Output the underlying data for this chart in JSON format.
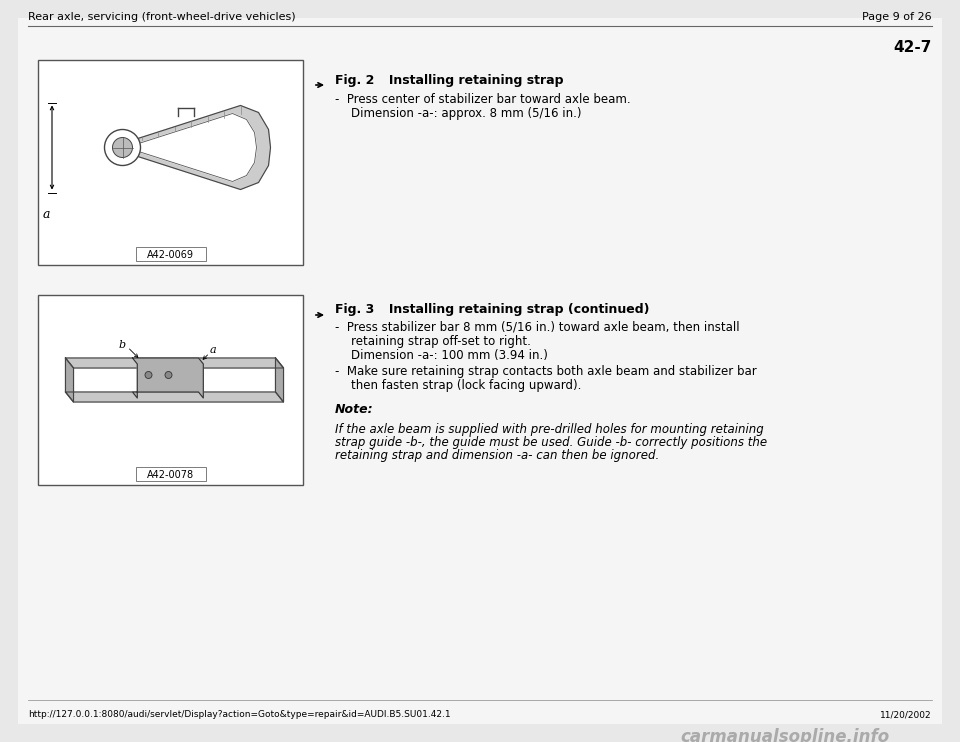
{
  "page_bg": "#e8e8e8",
  "content_bg": "#f5f5f5",
  "header_left": "Rear axle, servicing (front-wheel-drive vehicles)",
  "header_right": "Page 9 of 26",
  "page_number": "42-7",
  "fig2_title_bold": "Fig. 2",
  "fig2_title_rest": "     Installing retaining strap",
  "fig2_bullet1": "-  Press center of stabilizer bar toward axle beam.",
  "fig2_dim1": "     Dimension -a-: approx. 8 mm (5/16 in.)",
  "fig3_title_bold": "Fig. 3",
  "fig3_title_rest": "     Installing retaining strap (continued)",
  "fig3_bullet1": "-  Press stabilizer bar 8 mm (5/16 in.) toward axle beam, then install",
  "fig3_bullet1b": "     retaining strap off-set to right.",
  "fig3_dim1": "     Dimension -a-: 100 mm (3.94 in.)",
  "fig3_bullet2": "-  Make sure retaining strap contacts both axle beam and stabilizer bar",
  "fig3_bullet2b": "     then fasten strap (lock facing upward).",
  "note_label": "Note:",
  "note_text1": "If the axle beam is supplied with pre-drilled holes for mounting retaining",
  "note_text2": "strap guide -b-, the guide must be used. Guide -b- correctly positions the",
  "note_text3": "retaining strap and dimension -a- can then be ignored.",
  "footer_left": "http://127.0.0.1:8080/audi/servlet/Display?action=Goto&type=repair&id=AUDI.B5.SU01.42.1",
  "footer_right": "11/20/2002",
  "fig2_label": "A42-0069",
  "fig3_label": "A42-0078",
  "text_color": "#000000",
  "font_size_header": 8.0,
  "font_size_body": 8.5,
  "font_size_pagenumber": 11,
  "font_size_fig_title": 9.0,
  "font_size_note_label": 9.0,
  "font_size_note_body": 8.5,
  "font_size_label": 7.0,
  "font_size_footer": 6.5
}
